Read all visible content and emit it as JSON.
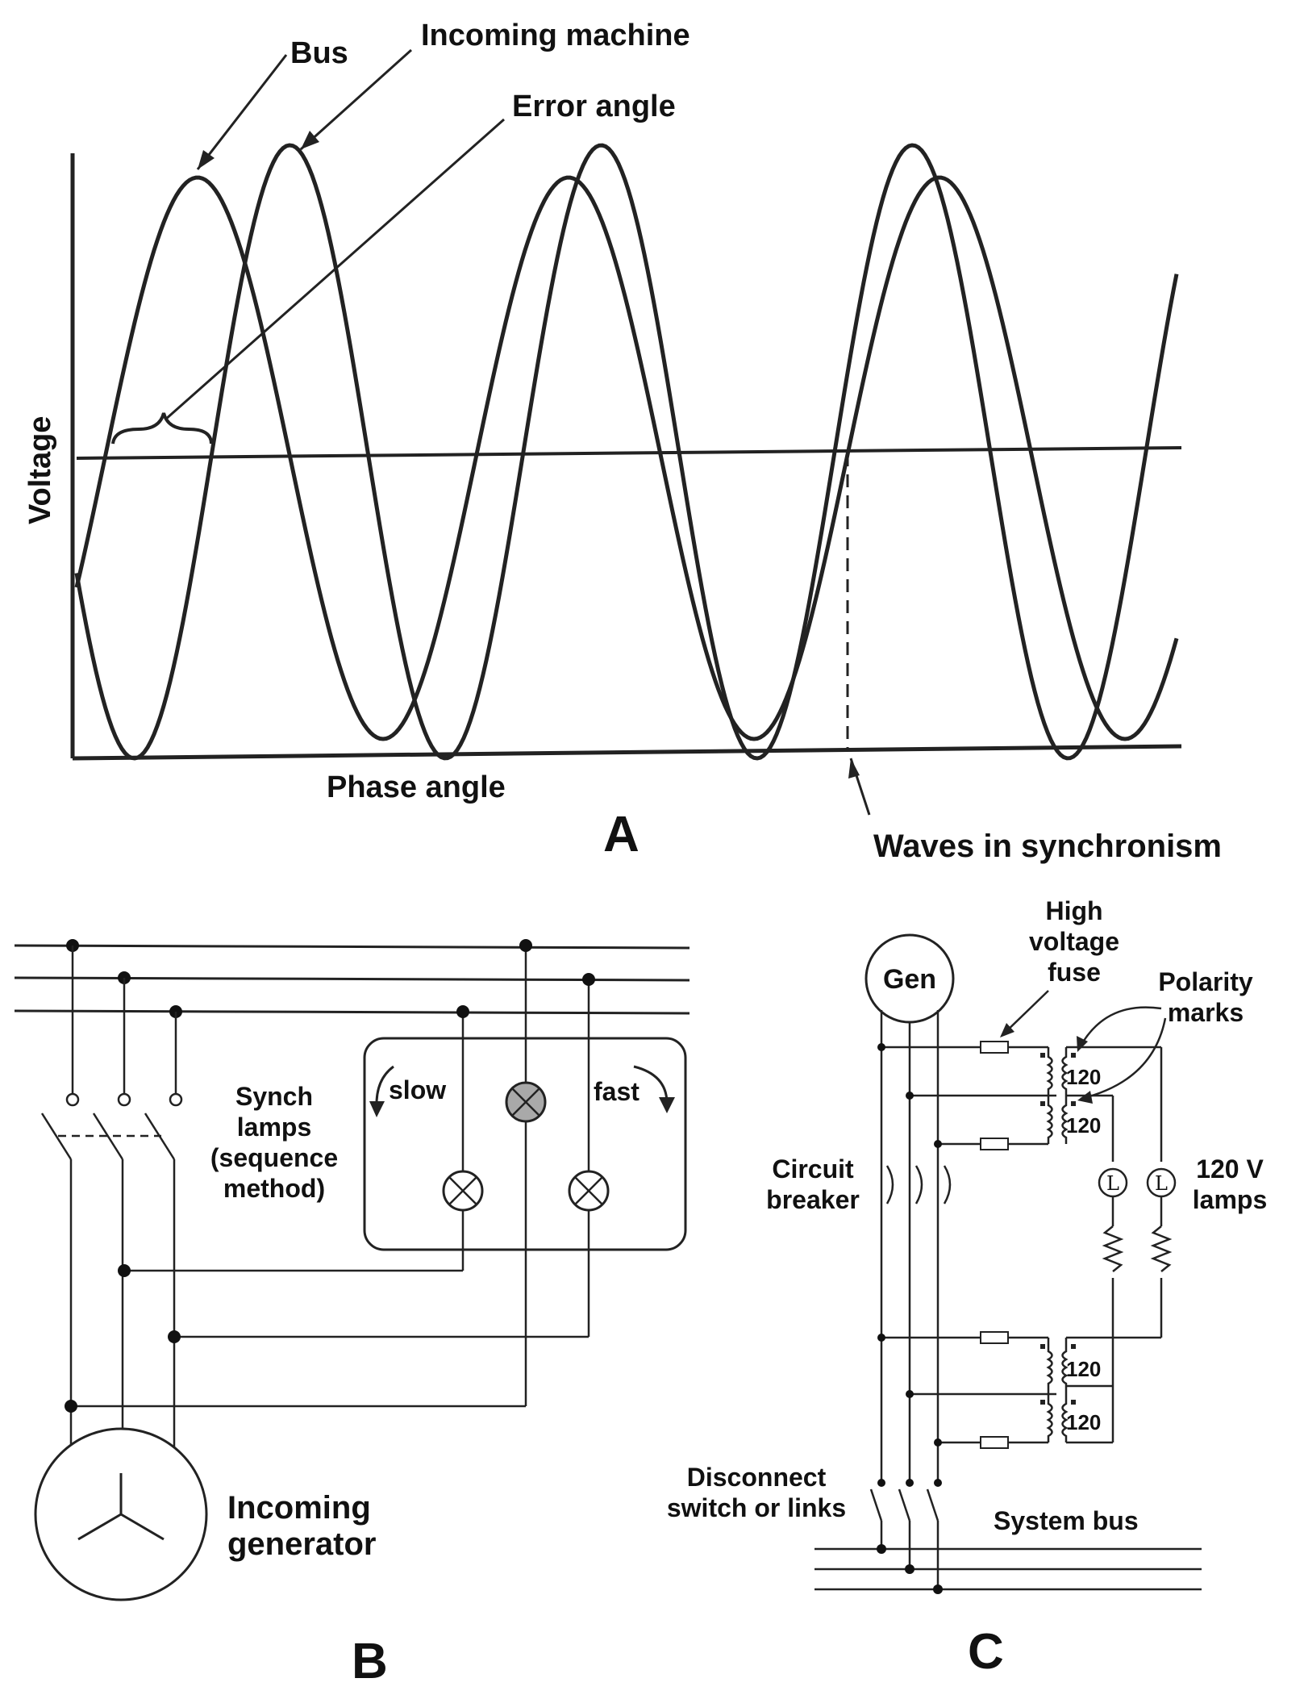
{
  "panel_a": {
    "letter": "A",
    "label_bus": "Bus",
    "label_incoming_machine": "Incoming machine",
    "label_error_angle": "Error angle",
    "ylabel": "Voltage",
    "xlabel": "Phase angle",
    "label_waves_sync": "Waves in synchronism"
  },
  "panel_b": {
    "letter": "B",
    "synch_label_lines": [
      "Synch",
      "lamps",
      "(sequence",
      "method)"
    ],
    "slow_label": "slow",
    "fast_label": "fast",
    "generator_label_lines": [
      "Incoming",
      "generator"
    ]
  },
  "panel_c": {
    "letter": "C",
    "gen_label": "Gen",
    "fuse_label_lines": [
      "High",
      "voltage",
      "fuse"
    ],
    "polarity_label_lines": [
      "Polarity",
      "marks"
    ],
    "breaker_label_lines": [
      "Circuit",
      "breaker"
    ],
    "lamps_label_lines": [
      "120 V",
      "lamps"
    ],
    "lamp_symbol": "L",
    "pt_ratings": [
      "120",
      "120",
      "120",
      "120"
    ],
    "disconnect_label_lines": [
      "Disconnect",
      "switch or links"
    ],
    "system_bus_label": "System bus"
  }
}
